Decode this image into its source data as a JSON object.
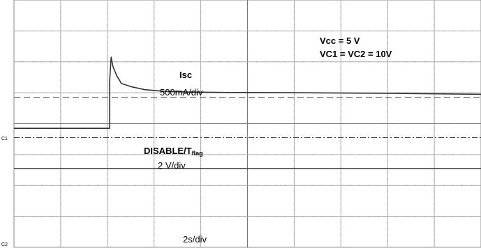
{
  "chart_data": {
    "type": "line",
    "grid": true,
    "x_divisions": 10,
    "y_divisions": 8,
    "time_per_div": "2s/div",
    "annotations": {
      "supply": "Vcc = 5 V",
      "channels": "VC1 = VC2 = 10V",
      "isc_name": "Isc",
      "isc_scale": "500mA/div",
      "disable_prefix": "DISABLE/T",
      "disable_sub": "flag",
      "disable_scale": "2 V/div"
    },
    "channel_markers": [
      "C1",
      "C2"
    ],
    "series": [
      {
        "name": "Isc",
        "color": "#333333",
        "x_div": [
          0,
          2.05,
          2.05,
          2.08,
          2.12,
          2.2,
          2.3,
          2.5,
          2.8,
          3.2,
          3.8,
          4.5,
          6.0,
          8.0,
          10.0
        ],
        "y_div": [
          3.85,
          3.85,
          5.4,
          6.15,
          5.85,
          5.55,
          5.3,
          5.2,
          5.1,
          5.05,
          5.02,
          5.01,
          5.0,
          4.98,
          4.95
        ]
      },
      {
        "name": "DISABLE/Tflag",
        "color": "#333333",
        "x_div": [
          0,
          10
        ],
        "y_div": [
          2.55,
          2.55
        ]
      }
    ],
    "reference_lines": [
      {
        "style": "dashed",
        "y_div": 4.85
      },
      {
        "style": "dash-dot",
        "y_div": 3.55
      }
    ]
  }
}
